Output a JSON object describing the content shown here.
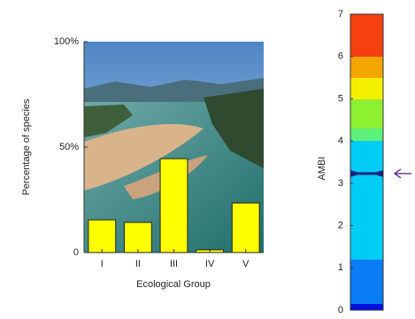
{
  "chart_data": [
    {
      "type": "bar",
      "ylabel": "Percentage of species",
      "xlabel": "Ecological Group",
      "categories": [
        "I",
        "II",
        "III",
        "IV",
        "V"
      ],
      "values": [
        15.5,
        14.3,
        44.5,
        1.3,
        23.5
      ],
      "color": "#ffff00",
      "ylim": [
        0,
        100
      ],
      "yticks": [
        0,
        {
          "value": 50,
          "label": "50%"
        },
        {
          "value": 100,
          "label": "100%"
        }
      ]
    },
    {
      "type": "gauge",
      "ylabel": "AMBI",
      "ylim": [
        0,
        7
      ],
      "yticks": [
        0,
        1,
        2,
        3,
        4,
        5,
        6,
        7
      ],
      "value": 3.23,
      "marker_color": "#1a237e",
      "arrow_color": "#5a1a9a"
    }
  ]
}
